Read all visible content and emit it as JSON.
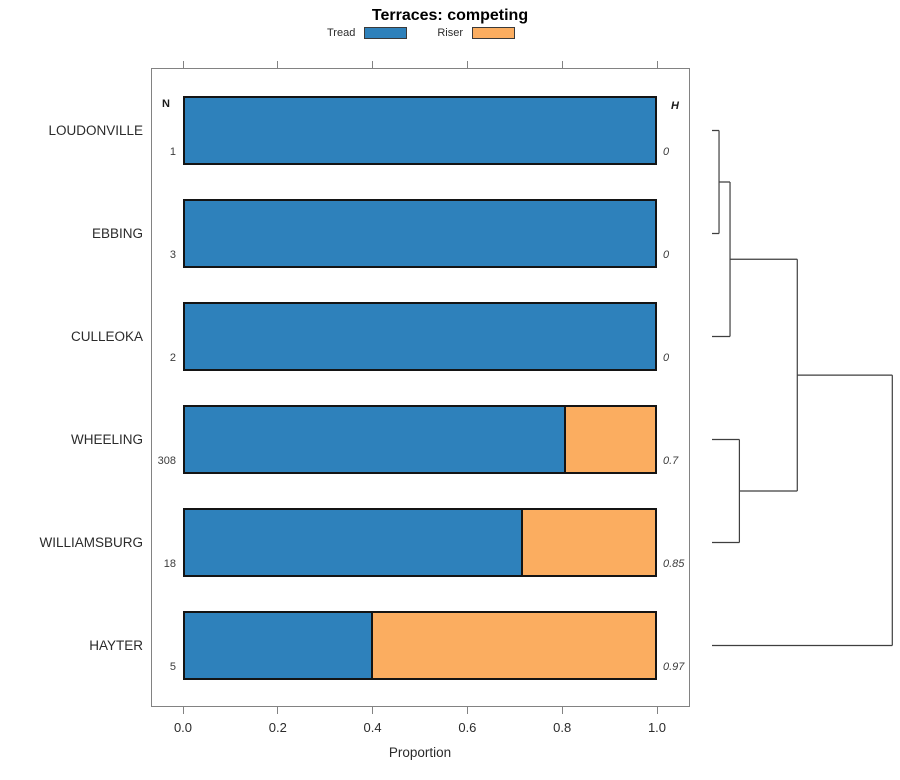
{
  "title": "Terraces: competing",
  "axis": {
    "xlabel": "Proportion",
    "tick_labels": [
      "0.0",
      "0.2",
      "0.4",
      "0.6",
      "0.8",
      "1.0"
    ]
  },
  "table": {
    "n_header": "N",
    "h_header": "H"
  },
  "chart_data": {
    "type": "bar",
    "orientation": "horizontal",
    "stacked": true,
    "title": "Terraces: competing",
    "xlabel": "Proportion",
    "xlim": [
      0,
      1
    ],
    "x_ticks": [
      0.0,
      0.2,
      0.4,
      0.6,
      0.8,
      1.0
    ],
    "grid": false,
    "legend_position": "top",
    "categories": [
      "LOUDONVILLE",
      "EBBING",
      "CULLEOKA",
      "WHEELING",
      "WILLIAMSBURG",
      "HAYTER"
    ],
    "sample_sizes_N": [
      "1",
      "3",
      "2",
      "308",
      "18",
      "5"
    ],
    "heterogeneity_H": [
      "0",
      "0",
      "0",
      "0.7",
      "0.85",
      "0.97"
    ],
    "series": [
      {
        "name": "Tread",
        "color": "#2e81bb",
        "values": [
          1.0,
          1.0,
          1.0,
          0.81,
          0.72,
          0.4
        ]
      },
      {
        "name": "Riser",
        "color": "#fbad60",
        "values": [
          0.0,
          0.0,
          0.0,
          0.19,
          0.28,
          0.6
        ]
      }
    ],
    "bar_border_color": "#141414",
    "dendrogram": {
      "side": "right",
      "leaves": [
        "LOUDONVILLE",
        "EBBING",
        "CULLEOKA",
        "WHEELING",
        "WILLIAMSBURG",
        "HAYTER"
      ],
      "merges": [
        {
          "id": "m1",
          "children": [
            "L0",
            "L1"
          ],
          "height": 0.039
        },
        {
          "id": "m2",
          "children": [
            "m1",
            "L2"
          ],
          "height": 0.1
        },
        {
          "id": "m3",
          "children": [
            "L3",
            "L4"
          ],
          "height": 0.152
        },
        {
          "id": "m4",
          "children": [
            "m2",
            "m3"
          ],
          "height": 0.473
        },
        {
          "id": "m5",
          "children": [
            "m4",
            "L5"
          ],
          "height": 1.0
        }
      ]
    }
  }
}
